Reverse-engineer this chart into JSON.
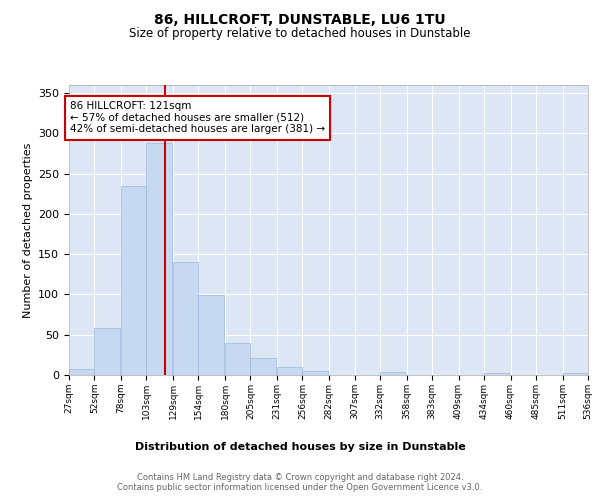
{
  "title": "86, HILLCROFT, DUNSTABLE, LU6 1TU",
  "subtitle": "Size of property relative to detached houses in Dunstable",
  "xlabel": "Distribution of detached houses by size in Dunstable",
  "ylabel": "Number of detached properties",
  "bins": [
    27,
    52,
    78,
    103,
    129,
    154,
    180,
    205,
    231,
    256,
    282,
    307,
    332,
    358,
    383,
    409,
    434,
    460,
    485,
    511,
    536
  ],
  "counts": [
    8,
    58,
    235,
    288,
    140,
    99,
    40,
    21,
    10,
    5,
    0,
    0,
    4,
    0,
    0,
    0,
    2,
    0,
    0,
    3
  ],
  "bar_color": "#c6d9f0",
  "bar_edge_color": "#9bbad9",
  "vline_x": 121,
  "vline_color": "#cc0000",
  "annotation_text": "86 HILLCROFT: 121sqm\n← 57% of detached houses are smaller (512)\n42% of semi-detached houses are larger (381) →",
  "annotation_box_color": "#ffffff",
  "annotation_box_edge": "#cc0000",
  "yticks": [
    0,
    50,
    100,
    150,
    200,
    250,
    300,
    350
  ],
  "ylim": [
    0,
    360
  ],
  "background_color": "#dce6f5",
  "plot_bg_color": "#dce6f5",
  "footer_text": "Contains HM Land Registry data © Crown copyright and database right 2024.\nContains public sector information licensed under the Open Government Licence v3.0.",
  "tick_labels": [
    "27sqm",
    "52sqm",
    "78sqm",
    "103sqm",
    "129sqm",
    "154sqm",
    "180sqm",
    "205sqm",
    "231sqm",
    "256sqm",
    "282sqm",
    "307sqm",
    "332sqm",
    "358sqm",
    "383sqm",
    "409sqm",
    "434sqm",
    "460sqm",
    "485sqm",
    "511sqm",
    "536sqm"
  ]
}
